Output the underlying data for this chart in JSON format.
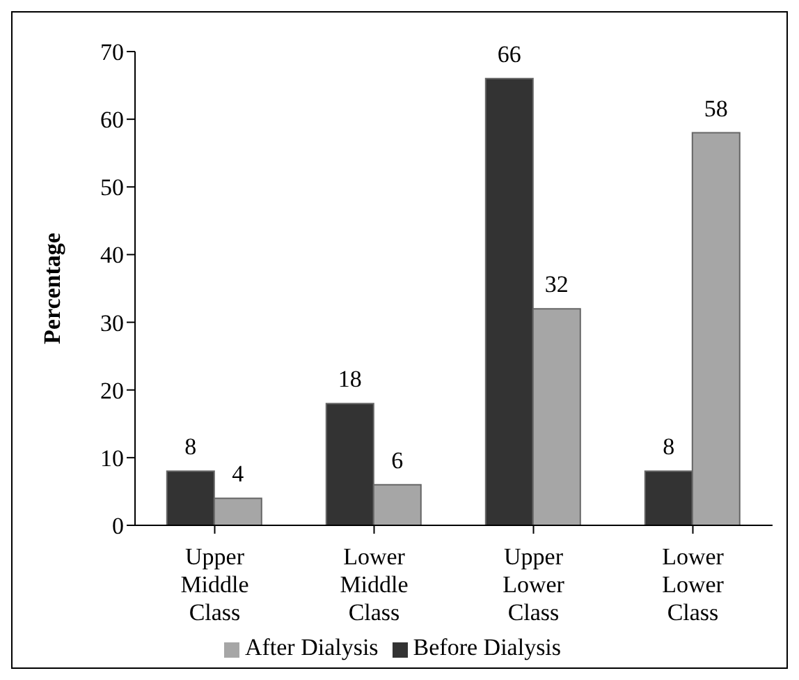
{
  "chart_data": {
    "type": "bar",
    "ylabel": "Percentage",
    "categories": [
      "Upper Middle Class",
      "Lower Middle Class",
      "Upper Lower Class",
      "Lower Lower Class"
    ],
    "series": [
      {
        "name": "Before Dialysis",
        "color": "#333333",
        "values": [
          8,
          18,
          66,
          8
        ]
      },
      {
        "name": "After Dialysis",
        "color": "#a6a6a6",
        "values": [
          4,
          6,
          32,
          58
        ]
      }
    ],
    "ylim": [
      0,
      70
    ],
    "yticks": [
      0,
      10,
      20,
      30,
      40,
      50,
      60,
      70
    ],
    "data_labels": true,
    "legend": "bottom",
    "grid": false
  }
}
